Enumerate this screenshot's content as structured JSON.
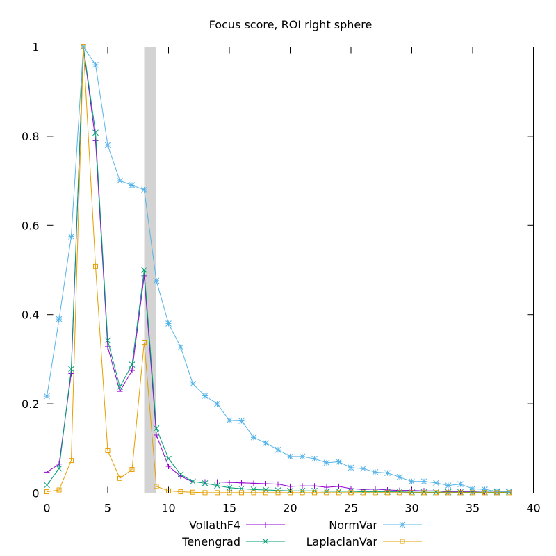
{
  "chart_data": {
    "type": "line",
    "title": "Focus score, ROI right sphere",
    "xlabel": "",
    "ylabel": "",
    "xlim": [
      0,
      40
    ],
    "ylim": [
      0,
      1
    ],
    "x_ticks": [
      0,
      5,
      10,
      15,
      20,
      25,
      30,
      35,
      40
    ],
    "y_ticks": [
      0,
      0.2,
      0.4,
      0.6,
      0.8,
      1
    ],
    "x_tick_labels": [
      "0",
      "5",
      "10",
      "15",
      "20",
      "25",
      "30",
      "35",
      "40"
    ],
    "y_tick_labels": [
      "0",
      "0.2",
      "0.4",
      "0.6",
      "0.8",
      "1"
    ],
    "grid": false,
    "legend_position": "bottom",
    "highlight_band": {
      "x": [
        8,
        9
      ],
      "color": "#d3d3d3"
    },
    "x": [
      0,
      1,
      2,
      3,
      4,
      5,
      6,
      7,
      8,
      9,
      10,
      11,
      12,
      13,
      14,
      15,
      16,
      17,
      18,
      19,
      20,
      21,
      22,
      23,
      24,
      25,
      26,
      27,
      28,
      29,
      30,
      31,
      32,
      33,
      34,
      35,
      36,
      37,
      38
    ],
    "series": [
      {
        "name": "VollathF4",
        "color": "#9400d3",
        "marker": "plus",
        "values": [
          0.047,
          0.065,
          0.268,
          1.0,
          0.79,
          0.328,
          0.228,
          0.275,
          0.487,
          0.13,
          0.06,
          0.038,
          0.025,
          0.025,
          0.025,
          0.024,
          0.023,
          0.022,
          0.021,
          0.02,
          0.015,
          0.016,
          0.016,
          0.013,
          0.015,
          0.01,
          0.008,
          0.009,
          0.007,
          0.006,
          0.006,
          0.005,
          0.005,
          0.003,
          0.003,
          0.003,
          0.002,
          0.002,
          0.002
        ]
      },
      {
        "name": "Tenengrad",
        "color": "#009e73",
        "marker": "cross",
        "values": [
          0.018,
          0.055,
          0.278,
          1.0,
          0.808,
          0.342,
          0.238,
          0.288,
          0.5,
          0.145,
          0.077,
          0.042,
          0.026,
          0.022,
          0.017,
          0.012,
          0.01,
          0.008,
          0.007,
          0.006,
          0.005,
          0.005,
          0.005,
          0.004,
          0.004,
          0.004,
          0.003,
          0.003,
          0.003,
          0.003,
          0.002,
          0.002,
          0.002,
          0.002,
          0.002,
          0.002,
          0.002,
          0.002,
          0.002
        ]
      },
      {
        "name": "NormVar",
        "color": "#56b4e9",
        "marker": "star",
        "values": [
          0.217,
          0.39,
          0.575,
          1.0,
          0.96,
          0.78,
          0.7,
          0.69,
          0.68,
          0.476,
          0.38,
          0.327,
          0.245,
          0.218,
          0.2,
          0.163,
          0.162,
          0.125,
          0.112,
          0.097,
          0.082,
          0.082,
          0.077,
          0.068,
          0.07,
          0.057,
          0.055,
          0.047,
          0.045,
          0.036,
          0.026,
          0.026,
          0.023,
          0.017,
          0.02,
          0.01,
          0.008,
          0.004,
          0.004
        ]
      },
      {
        "name": "LaplacianVar",
        "color": "#e69f00",
        "marker": "square",
        "values": [
          0.003,
          0.007,
          0.073,
          1.0,
          0.508,
          0.095,
          0.033,
          0.053,
          0.338,
          0.015,
          0.005,
          0.003,
          0.002,
          0.001,
          0.001,
          0.001,
          0.001,
          0.001,
          0.001,
          0.001,
          0.001,
          0.001,
          0.001,
          0.001,
          0.001,
          0.001,
          0.001,
          0.001,
          0.001,
          0.001,
          0.001,
          0.001,
          0.001,
          0.001,
          0.001,
          0.001,
          0.001,
          0.001,
          0.001
        ]
      }
    ]
  }
}
